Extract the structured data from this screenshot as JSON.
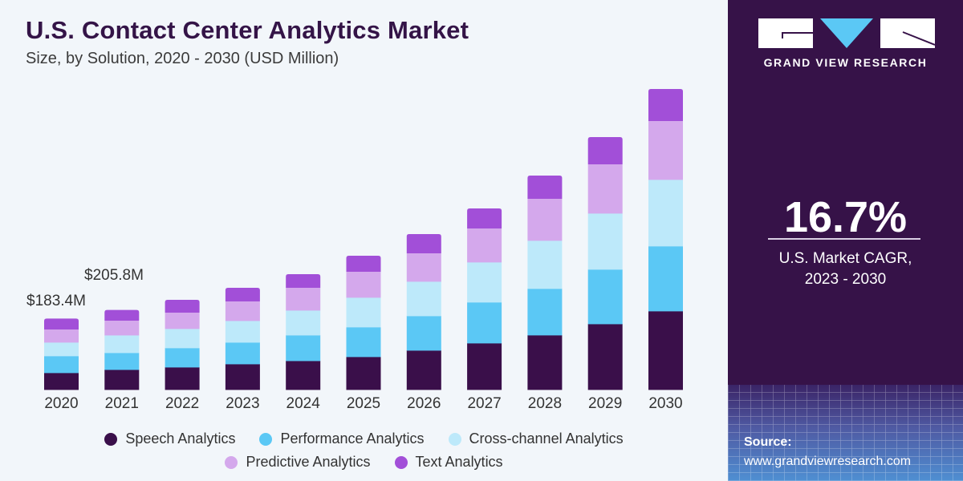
{
  "header": {
    "title": "U.S. Contact Center Analytics Market",
    "subtitle": "Size, by Solution, 2020 - 2030 (USD Million)"
  },
  "side_panel": {
    "brand": "GRAND VIEW RESEARCH",
    "cagr_value": "16.7%",
    "cagr_label_line1": "U.S. Market CAGR,",
    "cagr_label_line2": "2023 - 2030",
    "source_label": "Source:",
    "source_url": "www.grandviewresearch.com",
    "colors": {
      "background": "#361248",
      "logo_triangle": "#5bc8f5"
    }
  },
  "chart_data": {
    "type": "bar",
    "stacked": true,
    "title": "U.S. Contact Center Analytics Market",
    "subtitle": "Size, by Solution, 2020 - 2030 (USD Million)",
    "xlabel": "",
    "ylabel": "",
    "grid": false,
    "legend_position": "bottom",
    "ylim": [
      0,
      800
    ],
    "categories": [
      "2020",
      "2021",
      "2022",
      "2023",
      "2024",
      "2025",
      "2026",
      "2027",
      "2028",
      "2029",
      "2030"
    ],
    "series": [
      {
        "name": "Speech Analytics",
        "color": "#3a0f4a",
        "values": [
          43.5,
          51.7,
          58.0,
          66.2,
          74.5,
          84.9,
          101.4,
          120.1,
          140.8,
          169.7,
          202.9
        ]
      },
      {
        "name": "Performance Analytics",
        "color": "#5bc8f5",
        "values": [
          43.5,
          43.5,
          49.7,
          55.9,
          66.2,
          76.6,
          89.0,
          105.6,
          120.1,
          140.8,
          167.7
        ]
      },
      {
        "name": "Cross-channel Analytics",
        "color": "#bde9fa",
        "values": [
          35.2,
          45.5,
          49.7,
          55.9,
          64.2,
          76.6,
          89.0,
          103.5,
          124.2,
          144.9,
          171.8
        ]
      },
      {
        "name": "Predictive Analytics",
        "color": "#d4a8ec",
        "values": [
          33.1,
          37.3,
          41.4,
          49.7,
          58.0,
          66.2,
          72.5,
          86.9,
          107.6,
          126.3,
          151.1
        ]
      },
      {
        "name": "Text Analytics",
        "color": "#a24fd8",
        "values": [
          28.1,
          27.8,
          33.1,
          35.2,
          35.2,
          41.4,
          49.7,
          51.8,
          60.0,
          70.4,
          82.8
        ]
      }
    ],
    "annotations": [
      {
        "category": "2020",
        "text": "$183.4M"
      },
      {
        "category": "2021",
        "text": "$205.8M"
      }
    ]
  }
}
